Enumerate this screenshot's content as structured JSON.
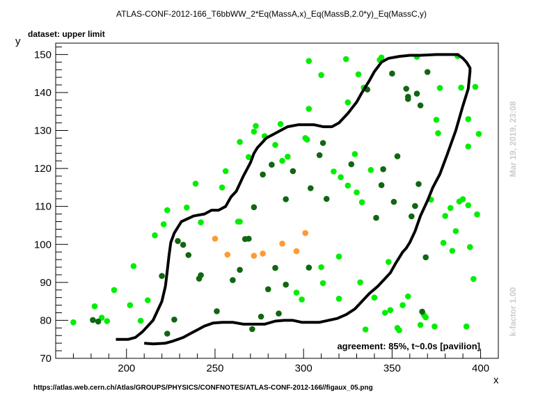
{
  "header": {
    "title": "ATLAS-CONF-2012-166_T6bbWW_2*Eq(MassA,x)_Eq(MassB,2.0*y)_Eq(MassC,y)",
    "dataset": "dataset: upper limit"
  },
  "footer": {
    "url": "https://atlas.web.cern.ch/Atlas/GROUPS/PHYSICS/CONFNOTES/ATLAS-CONF-2012-166//figaux_05.png"
  },
  "side": {
    "timestamp": "Mar 19, 2019, 23:08",
    "kfactor": "k-factor 1.00"
  },
  "chart_data": {
    "type": "scatter",
    "xlabel": "x",
    "ylabel": "y",
    "xlim": [
      160,
      410
    ],
    "ylim": [
      70,
      153
    ],
    "x_ticks": [
      200,
      250,
      300,
      350,
      400
    ],
    "y_ticks": [
      70,
      80,
      90,
      100,
      110,
      120,
      130,
      140,
      150
    ],
    "annotation": "agreement: 85%, t~0.0s [pavilion]",
    "colors": {
      "bright_green": "#00ee00",
      "dark_green": "#116611",
      "orange": "#ff9933",
      "contour": "#000000"
    },
    "series": [
      {
        "color_key": "bright_green",
        "points": [
          [
            170,
            79.5
          ],
          [
            182,
            83.7
          ],
          [
            186,
            80.7
          ],
          [
            189,
            79.8
          ],
          [
            193,
            88
          ],
          [
            202,
            84
          ],
          [
            204,
            94.3
          ],
          [
            208,
            79.9
          ],
          [
            212,
            85.3
          ],
          [
            216,
            102.4
          ],
          [
            221,
            105.3
          ],
          [
            223,
            109
          ],
          [
            234,
            109.7
          ],
          [
            239,
            116
          ],
          [
            242,
            105.8
          ],
          [
            254,
            115
          ],
          [
            256,
            119.3
          ],
          [
            263,
            106
          ],
          [
            264,
            106
          ],
          [
            264,
            127
          ],
          [
            269,
            123
          ],
          [
            272,
            129.7
          ],
          [
            273,
            131.2
          ],
          [
            278,
            128.5
          ],
          [
            284,
            126.2
          ],
          [
            287,
            131.7
          ],
          [
            288,
            122
          ],
          [
            291,
            123.1
          ],
          [
            296,
            87.3
          ],
          [
            299,
            85.5
          ],
          [
            301,
            128
          ],
          [
            302,
            127.6
          ],
          [
            303,
            135.7
          ],
          [
            303,
            148.3
          ],
          [
            310,
            94
          ],
          [
            310,
            144.6
          ],
          [
            311,
            89.8
          ],
          [
            317,
            119.2
          ],
          [
            320,
            85.7
          ],
          [
            320,
            96.8
          ],
          [
            321,
            117.7
          ],
          [
            324,
            148.8
          ],
          [
            325,
            137.4
          ],
          [
            325,
            115.5
          ],
          [
            329,
            123.8
          ],
          [
            330,
            113.7
          ],
          [
            331,
            144.8
          ],
          [
            332,
            90
          ],
          [
            333,
            111.1
          ],
          [
            334,
            141.3
          ],
          [
            335,
            77.6
          ],
          [
            338,
            119.6
          ],
          [
            340,
            86
          ],
          [
            343,
            148.6
          ],
          [
            344,
            149.2
          ],
          [
            346,
            82
          ],
          [
            348,
            95.4
          ],
          [
            349,
            82.7
          ],
          [
            353,
            78
          ],
          [
            354,
            77.4
          ],
          [
            356,
            84
          ],
          [
            359,
            86.3
          ],
          [
            364,
            149.4
          ],
          [
            366,
            78.8
          ],
          [
            368,
            81.4
          ],
          [
            369,
            80.8
          ],
          [
            372,
            111.8
          ],
          [
            374,
            78.4
          ],
          [
            375,
            132.8
          ],
          [
            376,
            129.3
          ],
          [
            377,
            141.2
          ],
          [
            379,
            100.4
          ],
          [
            380,
            107.5
          ],
          [
            383,
            109.6
          ],
          [
            384,
            98.3
          ],
          [
            386,
            103.5
          ],
          [
            387,
            149.6
          ],
          [
            388,
            111.3
          ],
          [
            389,
            141.3
          ],
          [
            390,
            111.9
          ],
          [
            392,
            78.4
          ],
          [
            393,
            133
          ],
          [
            393,
            125.8
          ],
          [
            393,
            110.3
          ],
          [
            394,
            99.3
          ],
          [
            396,
            90.9
          ],
          [
            397,
            141.5
          ],
          [
            398,
            107.9
          ],
          [
            399,
            129.1
          ]
        ]
      },
      {
        "color_key": "dark_green",
        "points": [
          [
            181,
            80.1
          ],
          [
            184,
            79.7
          ],
          [
            220,
            91.7
          ],
          [
            223,
            76.5
          ],
          [
            227,
            80.2
          ],
          [
            229,
            100.9
          ],
          [
            232,
            99.9
          ],
          [
            235,
            97.2
          ],
          [
            241,
            91
          ],
          [
            242,
            91.9
          ],
          [
            251,
            82.4
          ],
          [
            260,
            90.6
          ],
          [
            264,
            93.3
          ],
          [
            267,
            101.4
          ],
          [
            269,
            101.5
          ],
          [
            271,
            77.7
          ],
          [
            272,
            109.8
          ],
          [
            276,
            81
          ],
          [
            277,
            118.4
          ],
          [
            280,
            88.2
          ],
          [
            282,
            121
          ],
          [
            284,
            93.8
          ],
          [
            286,
            81.8
          ],
          [
            290,
            89.4
          ],
          [
            290,
            111.9
          ],
          [
            294,
            119.3
          ],
          [
            303,
            93.9
          ],
          [
            304,
            114.8
          ],
          [
            309,
            123.5
          ],
          [
            311,
            126.7
          ],
          [
            313,
            112
          ],
          [
            327,
            121.1
          ],
          [
            336,
            140.8
          ],
          [
            341,
            107
          ],
          [
            344,
            115.6
          ],
          [
            345,
            119.8
          ],
          [
            350,
            145
          ],
          [
            351,
            111.2
          ],
          [
            353,
            123.2
          ],
          [
            358,
            141
          ],
          [
            359,
            138.9
          ],
          [
            359,
            138.3
          ],
          [
            361,
            107.4
          ],
          [
            363,
            110.1
          ],
          [
            364,
            139.7
          ],
          [
            365,
            115.9
          ],
          [
            366,
            136.6
          ],
          [
            367,
            82.3
          ],
          [
            369,
            96.6
          ],
          [
            370,
            145.4
          ]
        ]
      },
      {
        "color_key": "orange",
        "points": [
          [
            250,
            101.5
          ],
          [
            257,
            97.3
          ],
          [
            272,
            97
          ],
          [
            277,
            97.6
          ],
          [
            288,
            100.2
          ],
          [
            296,
            98.2
          ],
          [
            301,
            103
          ]
        ]
      }
    ],
    "contour": [
      [
        194,
        75
      ],
      [
        201,
        75
      ],
      [
        205,
        75.5
      ],
      [
        209,
        77
      ],
      [
        215,
        80
      ],
      [
        220,
        85
      ],
      [
        222,
        89
      ],
      [
        223,
        93
      ],
      [
        224,
        97
      ],
      [
        225,
        100.5
      ],
      [
        227,
        103
      ],
      [
        231,
        106
      ],
      [
        238,
        107.5
      ],
      [
        244,
        108
      ],
      [
        248,
        109
      ],
      [
        252,
        109
      ],
      [
        256,
        110
      ],
      [
        259,
        112.5
      ],
      [
        262,
        114
      ],
      [
        266,
        118
      ],
      [
        270,
        121.5
      ],
      [
        272,
        124
      ],
      [
        274,
        125.5
      ],
      [
        276,
        126.5
      ],
      [
        279,
        128
      ],
      [
        283,
        129
      ],
      [
        287,
        130
      ],
      [
        291,
        131
      ],
      [
        297,
        131.5
      ],
      [
        302,
        131.5
      ],
      [
        306,
        131.5
      ],
      [
        311,
        131
      ],
      [
        316,
        131
      ],
      [
        320,
        132
      ],
      [
        325,
        134.5
      ],
      [
        330,
        137.5
      ],
      [
        333,
        140
      ],
      [
        337,
        143
      ],
      [
        340,
        145.5
      ],
      [
        344,
        148
      ],
      [
        348,
        149
      ],
      [
        354,
        149.5
      ],
      [
        360,
        149.8
      ],
      [
        366,
        149.8
      ],
      [
        375,
        150
      ],
      [
        383,
        150
      ],
      [
        387,
        150
      ],
      [
        390,
        149
      ],
      [
        392,
        148
      ],
      [
        394,
        146.5
      ],
      [
        394,
        145.5
      ],
      [
        393,
        141
      ],
      [
        390,
        136.5
      ],
      [
        386,
        130
      ],
      [
        381,
        123.5
      ],
      [
        377,
        118.5
      ],
      [
        373,
        115
      ],
      [
        370,
        111.5
      ],
      [
        366,
        107.5
      ],
      [
        363,
        103.5
      ],
      [
        360,
        100.5
      ],
      [
        358,
        99
      ],
      [
        356,
        98
      ],
      [
        354,
        96.5
      ],
      [
        352,
        95
      ],
      [
        349,
        92.5
      ],
      [
        346,
        91
      ],
      [
        342,
        89
      ],
      [
        337,
        87
      ],
      [
        333,
        85
      ],
      [
        329,
        83
      ],
      [
        324,
        81.5
      ],
      [
        319,
        80.5
      ],
      [
        314,
        80
      ],
      [
        309,
        79.5
      ],
      [
        304,
        79.5
      ],
      [
        299,
        79.5
      ],
      [
        294,
        80
      ],
      [
        289,
        80
      ],
      [
        284,
        79.8
      ],
      [
        278,
        79
      ],
      [
        272,
        79
      ],
      [
        266,
        79
      ],
      [
        260,
        79.5
      ],
      [
        254,
        79.5
      ],
      [
        249,
        79.3
      ],
      [
        244,
        78.5
      ],
      [
        240,
        77.5
      ],
      [
        236,
        76.5
      ],
      [
        232,
        75.5
      ],
      [
        229,
        75
      ],
      [
        226,
        74.5
      ],
      [
        222,
        74
      ],
      [
        215,
        73.8
      ],
      [
        210,
        74
      ]
    ]
  }
}
